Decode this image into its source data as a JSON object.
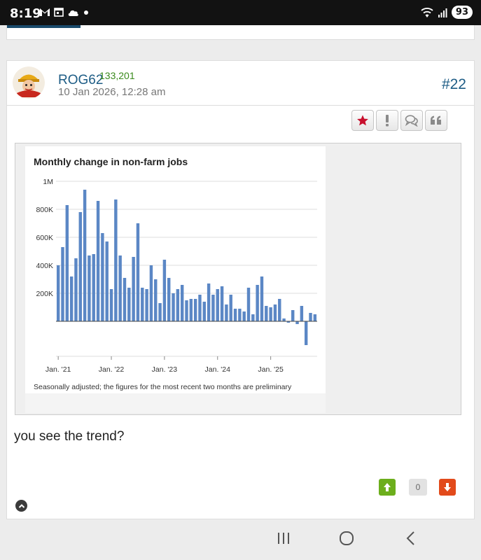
{
  "status_bar": {
    "time": "8:19",
    "battery": "93",
    "notification_icons": [
      "gmail-icon",
      "calendar-icon",
      "cloud-icon",
      "dot-icon"
    ],
    "system_icons": [
      "wifi-icon",
      "signal-icon",
      "battery-icon"
    ]
  },
  "post": {
    "username": "ROG62",
    "points": "133,201",
    "date": "10 Jan 2026, 12:28 am",
    "number": "#22",
    "action_icons": [
      "star-icon",
      "report-icon",
      "reply-icon",
      "quote-icon"
    ],
    "text": "you see the trend?",
    "vote_count": "0"
  },
  "colors": {
    "accent_blue": "#1d5c85",
    "points_green": "#3a8a1c",
    "star_red": "#c8102e",
    "bar_blue": "#5b87c5",
    "vote_up": "#6cae1c",
    "vote_down": "#e24a1b"
  },
  "chart_data": {
    "type": "bar",
    "title": "Monthly change in non-farm jobs",
    "note": "Seasonally adjusted; the figures for the most recent two months are preliminary",
    "y_ticks": [
      "1M",
      "800K",
      "600K",
      "400K",
      "200K"
    ],
    "y_tick_values": [
      1000000,
      800000,
      600000,
      400000,
      200000
    ],
    "ylim": [
      -220000,
      1000000
    ],
    "grid": true,
    "x_tick_labels": [
      "Jan. '21",
      "Jan. '22",
      "Jan. '23",
      "Jan. '24",
      "Jan. '25"
    ],
    "x_tick_index": [
      0,
      12,
      24,
      36,
      48
    ],
    "values": [
      400000,
      530000,
      830000,
      320000,
      450000,
      780000,
      940000,
      470000,
      480000,
      860000,
      630000,
      570000,
      230000,
      870000,
      470000,
      310000,
      240000,
      460000,
      700000,
      240000,
      230000,
      400000,
      300000,
      130000,
      440000,
      310000,
      200000,
      230000,
      260000,
      150000,
      160000,
      160000,
      190000,
      140000,
      270000,
      190000,
      230000,
      250000,
      120000,
      190000,
      90000,
      90000,
      70000,
      240000,
      50000,
      260000,
      320000,
      110000,
      100000,
      120000,
      160000,
      20000,
      -10000,
      80000,
      -20000,
      110000,
      -170000,
      60000,
      50000
    ]
  }
}
